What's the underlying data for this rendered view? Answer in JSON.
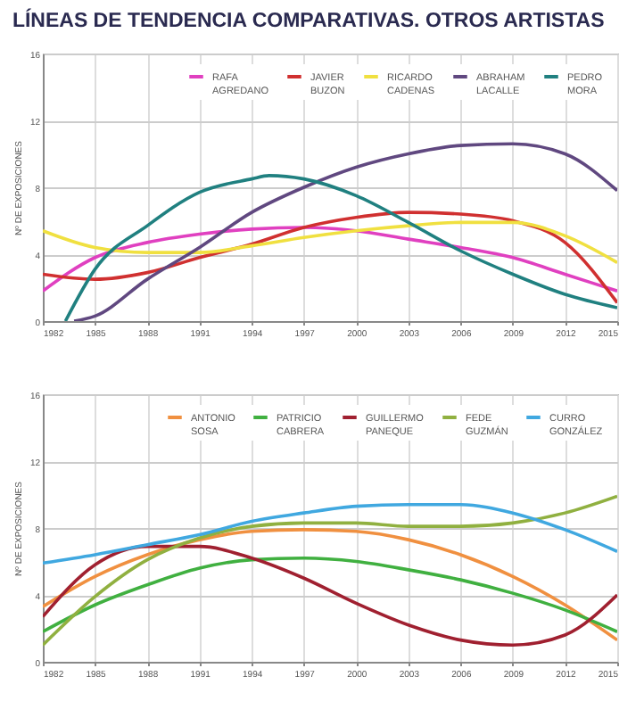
{
  "chart_data": [
    {
      "type": "line",
      "title": "LÍNEAS DE TENDENCIA COMPARATIVAS. OTROS ARTISTAS",
      "ylabel": "Nº DE EXPOSICIONES",
      "x": [
        1982,
        1985,
        1988,
        1991,
        1994,
        1997,
        2000,
        2003,
        2006,
        2009,
        2012,
        2015
      ],
      "xlim": [
        1982,
        2015
      ],
      "xticks": [
        1982,
        1985,
        1988,
        1991,
        1994,
        1997,
        2000,
        2003,
        2006,
        2009,
        2012,
        2015
      ],
      "ylim": [
        0,
        16
      ],
      "yticks": [
        0,
        4,
        8,
        12,
        16
      ],
      "grid": true,
      "legend": "top right",
      "series": [
        {
          "name": "RAFA AGREDANO",
          "color": "#e040c0",
          "values": [
            1.8,
            3.8,
            4.7,
            5.2,
            5.5,
            5.6,
            5.4,
            4.9,
            4.4,
            3.8,
            2.8,
            1.8
          ]
        },
        {
          "name": "JAVIER BUZON",
          "color": "#d03030",
          "values": [
            2.8,
            2.5,
            2.9,
            3.8,
            4.6,
            5.6,
            6.2,
            6.5,
            6.4,
            6.0,
            4.7,
            1.1
          ]
        },
        {
          "name": "RICARDO CADENAS",
          "color": "#f0e040",
          "values": [
            5.4,
            4.4,
            4.1,
            4.1,
            4.5,
            5.0,
            5.4,
            5.7,
            5.9,
            5.9,
            5.1,
            3.5
          ]
        },
        {
          "name": "ABRAHAM LACALLE",
          "color": "#604880",
          "x": [
            1983.8,
            1985,
            1988,
            1991,
            1994,
            1997,
            2000,
            2003,
            2006,
            2009,
            2012,
            2015
          ],
          "values": [
            0,
            0.3,
            2.5,
            4.4,
            6.5,
            8.0,
            9.2,
            10.0,
            10.5,
            10.6,
            10.0,
            7.8
          ]
        },
        {
          "name": "PEDRO MORA",
          "color": "#208080",
          "x": [
            1983.3,
            1985,
            1988,
            1991,
            1994,
            1995,
            1997,
            2000,
            2003,
            2006,
            2009,
            2012,
            2015
          ],
          "values": [
            0,
            3.1,
            5.7,
            7.7,
            8.5,
            8.7,
            8.5,
            7.5,
            5.9,
            4.2,
            2.8,
            1.6,
            0.8
          ]
        }
      ]
    },
    {
      "type": "line",
      "ylabel": "Nº DE EXPOSICIONES",
      "x": [
        1982,
        1985,
        1988,
        1991,
        1994,
        1997,
        2000,
        2003,
        2006,
        2009,
        2012,
        2015
      ],
      "xlim": [
        1982,
        2015
      ],
      "xticks": [
        1982,
        1985,
        1988,
        1991,
        1994,
        1997,
        2000,
        2003,
        2006,
        2009,
        2012,
        2015
      ],
      "ylim": [
        0,
        16
      ],
      "yticks": [
        0,
        4,
        8,
        12,
        16
      ],
      "grid": true,
      "legend": "top right",
      "series": [
        {
          "name": "ANTONIO SOSA",
          "color": "#f09040",
          "values": [
            3.3,
            5.1,
            6.4,
            7.3,
            7.8,
            7.9,
            7.8,
            7.3,
            6.4,
            5.1,
            3.4,
            1.3
          ]
        },
        {
          "name": "PATRICIO CABRERA",
          "color": "#40b040",
          "values": [
            1.8,
            3.4,
            4.6,
            5.6,
            6.1,
            6.2,
            6.0,
            5.5,
            4.9,
            4.1,
            3.1,
            1.8
          ]
        },
        {
          "name": "GUILLERMO PANEQUE",
          "color": "#a02030",
          "values": [
            2.7,
            5.8,
            6.9,
            6.9,
            6.2,
            5.0,
            3.5,
            2.2,
            1.3,
            1.0,
            1.6,
            4.0
          ]
        },
        {
          "name": "FEDE GUZMÁN",
          "color": "#90b040",
          "values": [
            1.0,
            3.9,
            6.1,
            7.4,
            8.1,
            8.3,
            8.3,
            8.1,
            8.1,
            8.3,
            8.9,
            9.9
          ]
        },
        {
          "name": "CURRO GONZÁLEZ",
          "color": "#40a8e0",
          "values": [
            5.9,
            6.4,
            7.0,
            7.6,
            8.4,
            8.9,
            9.3,
            9.4,
            9.4,
            8.9,
            7.9,
            6.6
          ]
        }
      ]
    }
  ]
}
